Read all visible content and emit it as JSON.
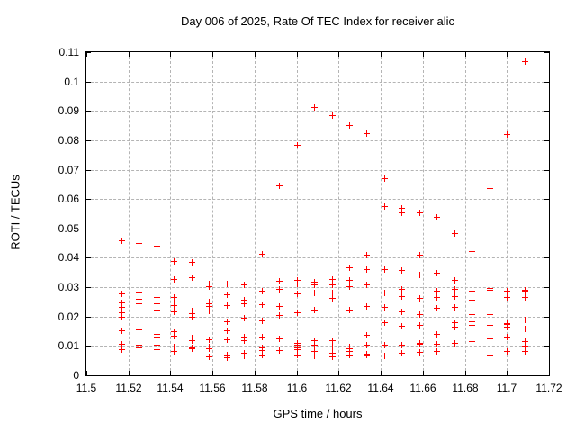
{
  "chart_data": {
    "type": "scatter",
    "title": "Day 006 of 2025, Rate Of TEC Index for receiver alic",
    "xlabel": "GPS time / hours",
    "ylabel": "ROTI / TECUs",
    "xlim": [
      11.5,
      11.72
    ],
    "ylim": [
      0,
      0.11
    ],
    "xticks": [
      11.5,
      11.52,
      11.54,
      11.56,
      11.58,
      11.6,
      11.62,
      11.64,
      11.66,
      11.68,
      11.7,
      11.72
    ],
    "xtick_labels": [
      "11.5",
      "11.52",
      "11.54",
      "11.56",
      "11.58",
      "11.6",
      "11.62",
      "11.64",
      "11.66",
      "11.68",
      "11.7",
      "11.72"
    ],
    "yticks": [
      0,
      0.01,
      0.02,
      0.03,
      0.04,
      0.05,
      0.06,
      0.07,
      0.08,
      0.09,
      0.1,
      0.11
    ],
    "ytick_labels": [
      "0",
      "0.01",
      "0.02",
      "0.03",
      "0.04",
      "0.05",
      "0.06",
      "0.07",
      "0.08",
      "0.09",
      "0.1",
      "0.11"
    ],
    "grid": true,
    "legend": false,
    "marker": {
      "shape": "plus",
      "color": "#ff0000",
      "size": 7
    },
    "colors": {
      "background": "#ffffff",
      "axis": "#000000",
      "grid": "#b4b4b4",
      "text": "#000000"
    },
    "points": [
      [
        11.5167,
        0.046
      ],
      [
        11.5167,
        0.0278
      ],
      [
        11.5167,
        0.0248
      ],
      [
        11.5167,
        0.0233
      ],
      [
        11.5167,
        0.0214
      ],
      [
        11.5167,
        0.0199
      ],
      [
        11.5167,
        0.0153
      ],
      [
        11.5167,
        0.0107
      ],
      [
        11.5167,
        0.009
      ],
      [
        11.525,
        0.045
      ],
      [
        11.525,
        0.0285
      ],
      [
        11.525,
        0.026
      ],
      [
        11.525,
        0.0245
      ],
      [
        11.525,
        0.022
      ],
      [
        11.525,
        0.0155
      ],
      [
        11.525,
        0.0105
      ],
      [
        11.525,
        0.0094
      ],
      [
        11.5333,
        0.044
      ],
      [
        11.5333,
        0.0267
      ],
      [
        11.5333,
        0.025
      ],
      [
        11.5333,
        0.0244
      ],
      [
        11.5333,
        0.0224
      ],
      [
        11.5333,
        0.014
      ],
      [
        11.5333,
        0.0131
      ],
      [
        11.5333,
        0.0105
      ],
      [
        11.5333,
        0.009
      ],
      [
        11.5417,
        0.039
      ],
      [
        11.5417,
        0.0328
      ],
      [
        11.5417,
        0.0267
      ],
      [
        11.5417,
        0.0251
      ],
      [
        11.5417,
        0.0238
      ],
      [
        11.5417,
        0.0218
      ],
      [
        11.5417,
        0.0149
      ],
      [
        11.5417,
        0.0135
      ],
      [
        11.5417,
        0.0098
      ],
      [
        11.5417,
        0.0084
      ],
      [
        11.55,
        0.0387
      ],
      [
        11.55,
        0.0333
      ],
      [
        11.55,
        0.0221
      ],
      [
        11.55,
        0.021
      ],
      [
        11.55,
        0.02
      ],
      [
        11.55,
        0.0128
      ],
      [
        11.55,
        0.0118
      ],
      [
        11.55,
        0.0095
      ],
      [
        11.55,
        0.0091
      ],
      [
        11.5583,
        0.0313
      ],
      [
        11.5583,
        0.0303
      ],
      [
        11.5583,
        0.0251
      ],
      [
        11.5583,
        0.0244
      ],
      [
        11.5583,
        0.0236
      ],
      [
        11.5583,
        0.0221
      ],
      [
        11.5583,
        0.0123
      ],
      [
        11.5583,
        0.0098
      ],
      [
        11.5583,
        0.0092
      ],
      [
        11.5583,
        0.0065
      ],
      [
        11.5667,
        0.0313
      ],
      [
        11.5667,
        0.0275
      ],
      [
        11.5667,
        0.0239
      ],
      [
        11.5667,
        0.0185
      ],
      [
        11.5667,
        0.0154
      ],
      [
        11.5667,
        0.0123
      ],
      [
        11.5667,
        0.0072
      ],
      [
        11.5667,
        0.006
      ],
      [
        11.575,
        0.0308
      ],
      [
        11.575,
        0.0257
      ],
      [
        11.575,
        0.0244
      ],
      [
        11.575,
        0.0195
      ],
      [
        11.575,
        0.0133
      ],
      [
        11.575,
        0.0118
      ],
      [
        11.575,
        0.0077
      ],
      [
        11.575,
        0.0066
      ],
      [
        11.5833,
        0.0415
      ],
      [
        11.5833,
        0.0289
      ],
      [
        11.5833,
        0.0241
      ],
      [
        11.5833,
        0.0187
      ],
      [
        11.5833,
        0.0131
      ],
      [
        11.5833,
        0.0094
      ],
      [
        11.5833,
        0.0087
      ],
      [
        11.5833,
        0.007
      ],
      [
        11.5917,
        0.0646
      ],
      [
        11.5917,
        0.0323
      ],
      [
        11.5917,
        0.0295
      ],
      [
        11.5917,
        0.0236
      ],
      [
        11.5917,
        0.0205
      ],
      [
        11.5917,
        0.0125
      ],
      [
        11.5917,
        0.0087
      ],
      [
        11.6,
        0.0785
      ],
      [
        11.6,
        0.0325
      ],
      [
        11.6,
        0.0313
      ],
      [
        11.6,
        0.0279
      ],
      [
        11.6,
        0.0215
      ],
      [
        11.6,
        0.011
      ],
      [
        11.6,
        0.0103
      ],
      [
        11.6,
        0.0094
      ],
      [
        11.6,
        0.009
      ],
      [
        11.6,
        0.0072
      ],
      [
        11.6083,
        0.0913
      ],
      [
        11.6083,
        0.032
      ],
      [
        11.6083,
        0.0308
      ],
      [
        11.6083,
        0.0282
      ],
      [
        11.6083,
        0.0223
      ],
      [
        11.6083,
        0.0118
      ],
      [
        11.6083,
        0.0103
      ],
      [
        11.6083,
        0.0082
      ],
      [
        11.6083,
        0.0067
      ],
      [
        11.6167,
        0.0887
      ],
      [
        11.6167,
        0.0328
      ],
      [
        11.6167,
        0.0308
      ],
      [
        11.6167,
        0.0282
      ],
      [
        11.6167,
        0.0264
      ],
      [
        11.6167,
        0.0118
      ],
      [
        11.6167,
        0.0098
      ],
      [
        11.6167,
        0.0077
      ],
      [
        11.6167,
        0.0065
      ],
      [
        11.625,
        0.0853
      ],
      [
        11.625,
        0.0369
      ],
      [
        11.625,
        0.0325
      ],
      [
        11.625,
        0.0303
      ],
      [
        11.625,
        0.0223
      ],
      [
        11.625,
        0.0098
      ],
      [
        11.625,
        0.0091
      ],
      [
        11.625,
        0.0082
      ],
      [
        11.625,
        0.0072
      ],
      [
        11.6333,
        0.0823
      ],
      [
        11.6333,
        0.041
      ],
      [
        11.6333,
        0.0361
      ],
      [
        11.6333,
        0.0308
      ],
      [
        11.6333,
        0.0236
      ],
      [
        11.6333,
        0.0138
      ],
      [
        11.6333,
        0.0103
      ],
      [
        11.6333,
        0.0075
      ],
      [
        11.6333,
        0.0071
      ],
      [
        11.6417,
        0.067
      ],
      [
        11.6417,
        0.0577
      ],
      [
        11.6417,
        0.0361
      ],
      [
        11.6417,
        0.0282
      ],
      [
        11.6417,
        0.0233
      ],
      [
        11.6417,
        0.018
      ],
      [
        11.6417,
        0.0103
      ],
      [
        11.6417,
        0.0066
      ],
      [
        11.65,
        0.0571
      ],
      [
        11.65,
        0.0556
      ],
      [
        11.65,
        0.0359
      ],
      [
        11.65,
        0.0295
      ],
      [
        11.65,
        0.0269
      ],
      [
        11.65,
        0.0218
      ],
      [
        11.65,
        0.0169
      ],
      [
        11.65,
        0.0105
      ],
      [
        11.65,
        0.0077
      ],
      [
        11.6583,
        0.0554
      ],
      [
        11.6583,
        0.041
      ],
      [
        11.6583,
        0.0344
      ],
      [
        11.6583,
        0.0262
      ],
      [
        11.6583,
        0.0207
      ],
      [
        11.6583,
        0.0172
      ],
      [
        11.6583,
        0.011
      ],
      [
        11.6583,
        0.0106
      ],
      [
        11.6583,
        0.008
      ],
      [
        11.6667,
        0.0538
      ],
      [
        11.6667,
        0.0349
      ],
      [
        11.6667,
        0.0289
      ],
      [
        11.6667,
        0.0267
      ],
      [
        11.6667,
        0.0231
      ],
      [
        11.6667,
        0.0142
      ],
      [
        11.6667,
        0.0108
      ],
      [
        11.6667,
        0.0084
      ],
      [
        11.675,
        0.0484
      ],
      [
        11.675,
        0.0325
      ],
      [
        11.675,
        0.0293
      ],
      [
        11.675,
        0.0269
      ],
      [
        11.675,
        0.0234
      ],
      [
        11.675,
        0.018
      ],
      [
        11.675,
        0.0166
      ],
      [
        11.675,
        0.0111
      ],
      [
        11.6833,
        0.0423
      ],
      [
        11.6833,
        0.0289
      ],
      [
        11.6833,
        0.0256
      ],
      [
        11.6833,
        0.0207
      ],
      [
        11.6833,
        0.0183
      ],
      [
        11.6833,
        0.0172
      ],
      [
        11.6833,
        0.0115
      ],
      [
        11.6917,
        0.0638
      ],
      [
        11.6917,
        0.0296
      ],
      [
        11.6917,
        0.0292
      ],
      [
        11.6917,
        0.0207
      ],
      [
        11.6917,
        0.019
      ],
      [
        11.6917,
        0.0172
      ],
      [
        11.6917,
        0.0125
      ],
      [
        11.6917,
        0.007
      ],
      [
        11.7,
        0.082
      ],
      [
        11.7,
        0.0288
      ],
      [
        11.7,
        0.0267
      ],
      [
        11.7,
        0.0178
      ],
      [
        11.7,
        0.0175
      ],
      [
        11.7,
        0.0164
      ],
      [
        11.7,
        0.0131
      ],
      [
        11.7,
        0.0084
      ],
      [
        11.7083,
        0.107
      ],
      [
        11.7083,
        0.029
      ],
      [
        11.7083,
        0.0288
      ],
      [
        11.7083,
        0.0267
      ],
      [
        11.7083,
        0.019
      ],
      [
        11.7083,
        0.0159
      ],
      [
        11.7083,
        0.0115
      ],
      [
        11.7083,
        0.0101
      ],
      [
        11.7083,
        0.0084
      ]
    ]
  }
}
